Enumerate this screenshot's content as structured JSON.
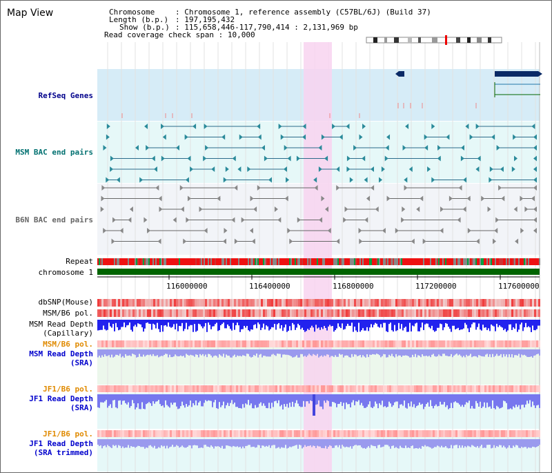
{
  "page": {
    "title": "Map View"
  },
  "header": {
    "chromosome_label": "Chromosome",
    "chromosome_value": "Chromosome 1, reference assembly (C57BL/6J) (Build 37)",
    "length_label": "Length (b.p.)",
    "length_value": "197,195,432",
    "show_label": "Show (b.p.)",
    "show_value": "115,658,446-117,790,414 : 2,131,969 bp",
    "coverage_label": "Read coverage check span",
    "coverage_value": "10,000"
  },
  "tracks": {
    "refseq": "RefSeq Genes",
    "msm_bac": "MSM BAC end pairs",
    "b6n_bac": "B6N BAC end pairs",
    "repeat": "Repeat",
    "chromosome": "chromosome 1",
    "dbsnp": "dbSNP(Mouse)",
    "msm_b6_pol_1": "MSM/B6 pol.",
    "msm_depth_cap_1": "MSM Read Depth",
    "msm_depth_cap_2": "(Capillary)",
    "msm_b6_pol_2": "MSM/B6 pol.",
    "msm_depth_sra_1": "MSM Read Depth",
    "msm_depth_sra_2": "(SRA)",
    "jf1_b6_pol_1": "JF1/B6 pol.",
    "jf1_depth_sra_1": "JF1 Read Depth",
    "jf1_depth_sra_2": "(SRA)",
    "jf1_b6_pol_2": "JF1/B6 pol.",
    "jf1_depth_trim_1": "JF1 Read Depth",
    "jf1_depth_trim_2": "(SRA trimmed)"
  },
  "axis": {
    "ticks": [
      "116000000",
      "116400000",
      "116800000",
      "117200000",
      "117600000"
    ]
  },
  "colors": {
    "refseq_label": "#00008b",
    "msm_bac_label": "#007070",
    "b6n_bac_label": "#666666",
    "msm_pol_label": "#e08a00",
    "msm_depth_label": "#0000cc",
    "highlight": "#f8d4f0"
  }
}
